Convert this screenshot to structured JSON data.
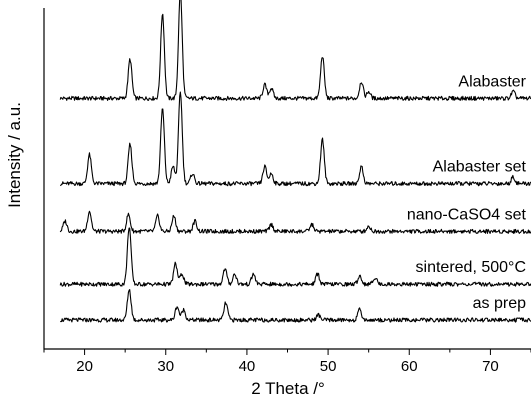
{
  "chart_data": {
    "type": "line",
    "title": "",
    "xlabel": "2 Theta /°",
    "ylabel": "Intensity / a.u.",
    "xlim": [
      15,
      75
    ],
    "xticks": [
      20,
      30,
      40,
      50,
      60,
      70
    ],
    "yticks": [],
    "grid": false,
    "legend": "none",
    "series": [
      {
        "name": "Alabaster",
        "baseline": 0.735,
        "peaks": [
          [
            25.6,
            0.115
          ],
          [
            29.6,
            0.25
          ],
          [
            31.8,
            0.31
          ],
          [
            42.2,
            0.04
          ],
          [
            43.0,
            0.03
          ],
          [
            49.3,
            0.125
          ],
          [
            54.1,
            0.05
          ],
          [
            55.0,
            0.02
          ],
          [
            72.8,
            0.02
          ]
        ]
      },
      {
        "name": "Alabaster set",
        "baseline": 0.485,
        "peaks": [
          [
            20.6,
            0.085
          ],
          [
            25.6,
            0.115
          ],
          [
            29.6,
            0.22
          ],
          [
            31.8,
            0.27
          ],
          [
            30.9,
            0.05
          ],
          [
            33.3,
            0.03
          ],
          [
            42.2,
            0.05
          ],
          [
            43.0,
            0.03
          ],
          [
            49.3,
            0.13
          ],
          [
            54.1,
            0.05
          ],
          [
            72.8,
            0.02
          ]
        ]
      },
      {
        "name": "nano-CaSO4 set",
        "baseline": 0.345,
        "peaks": [
          [
            17.6,
            0.03
          ],
          [
            20.6,
            0.06
          ],
          [
            25.4,
            0.05
          ],
          [
            29.0,
            0.045
          ],
          [
            31.0,
            0.045
          ],
          [
            33.6,
            0.03
          ],
          [
            43.0,
            0.02
          ],
          [
            48.0,
            0.02
          ],
          [
            55.0,
            0.015
          ]
        ]
      },
      {
        "name": "sintered, 500°C",
        "baseline": 0.19,
        "peaks": [
          [
            25.5,
            0.17
          ],
          [
            31.2,
            0.06
          ],
          [
            32.0,
            0.03
          ],
          [
            37.3,
            0.045
          ],
          [
            38.5,
            0.03
          ],
          [
            40.8,
            0.03
          ],
          [
            48.7,
            0.03
          ],
          [
            53.9,
            0.025
          ],
          [
            55.8,
            0.02
          ]
        ]
      },
      {
        "name": "as prep",
        "baseline": 0.085,
        "peaks": [
          [
            25.5,
            0.09
          ],
          [
            31.4,
            0.04
          ],
          [
            32.2,
            0.03
          ],
          [
            37.4,
            0.05
          ],
          [
            48.8,
            0.015
          ],
          [
            53.9,
            0.03
          ]
        ]
      }
    ]
  }
}
